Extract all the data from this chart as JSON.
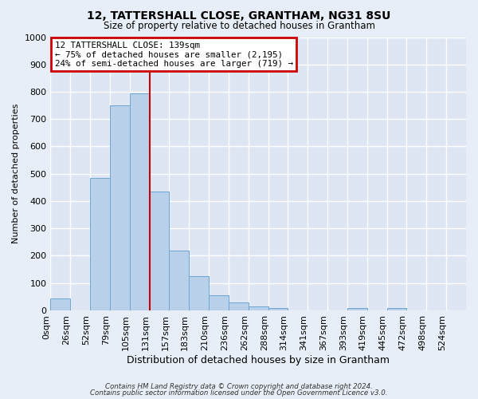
{
  "title": "12, TATTERSHALL CLOSE, GRANTHAM, NG31 8SU",
  "subtitle": "Size of property relative to detached houses in Grantham",
  "xlabel": "Distribution of detached houses by size in Grantham",
  "ylabel": "Number of detached properties",
  "bar_labels": [
    "0sqm",
    "26sqm",
    "52sqm",
    "79sqm",
    "105sqm",
    "131sqm",
    "157sqm",
    "183sqm",
    "210sqm",
    "236sqm",
    "262sqm",
    "288sqm",
    "314sqm",
    "341sqm",
    "367sqm",
    "393sqm",
    "419sqm",
    "445sqm",
    "472sqm",
    "498sqm",
    "524sqm"
  ],
  "bar_heights": [
    45,
    0,
    485,
    750,
    795,
    435,
    220,
    125,
    55,
    28,
    15,
    8,
    0,
    0,
    0,
    8,
    0,
    8,
    0,
    0,
    0
  ],
  "bar_color": "#b8d0ea",
  "bar_edge_color": "#6ea6d0",
  "ylim": [
    0,
    1000
  ],
  "yticks": [
    0,
    100,
    200,
    300,
    400,
    500,
    600,
    700,
    800,
    900,
    1000
  ],
  "vline_x": 5,
  "vline_color": "#cc0000",
  "annotation_title": "12 TATTERSHALL CLOSE: 139sqm",
  "annotation_line2": "← 75% of detached houses are smaller (2,195)",
  "annotation_line3": "24% of semi-detached houses are larger (719) →",
  "annotation_box_color": "#cc0000",
  "footer1": "Contains HM Land Registry data © Crown copyright and database right 2024.",
  "footer2": "Contains public sector information licensed under the Open Government Licence v3.0.",
  "background_color": "#e8eef7",
  "grid_color": "#d0d8e8",
  "plot_bg_color": "#dde6f2"
}
